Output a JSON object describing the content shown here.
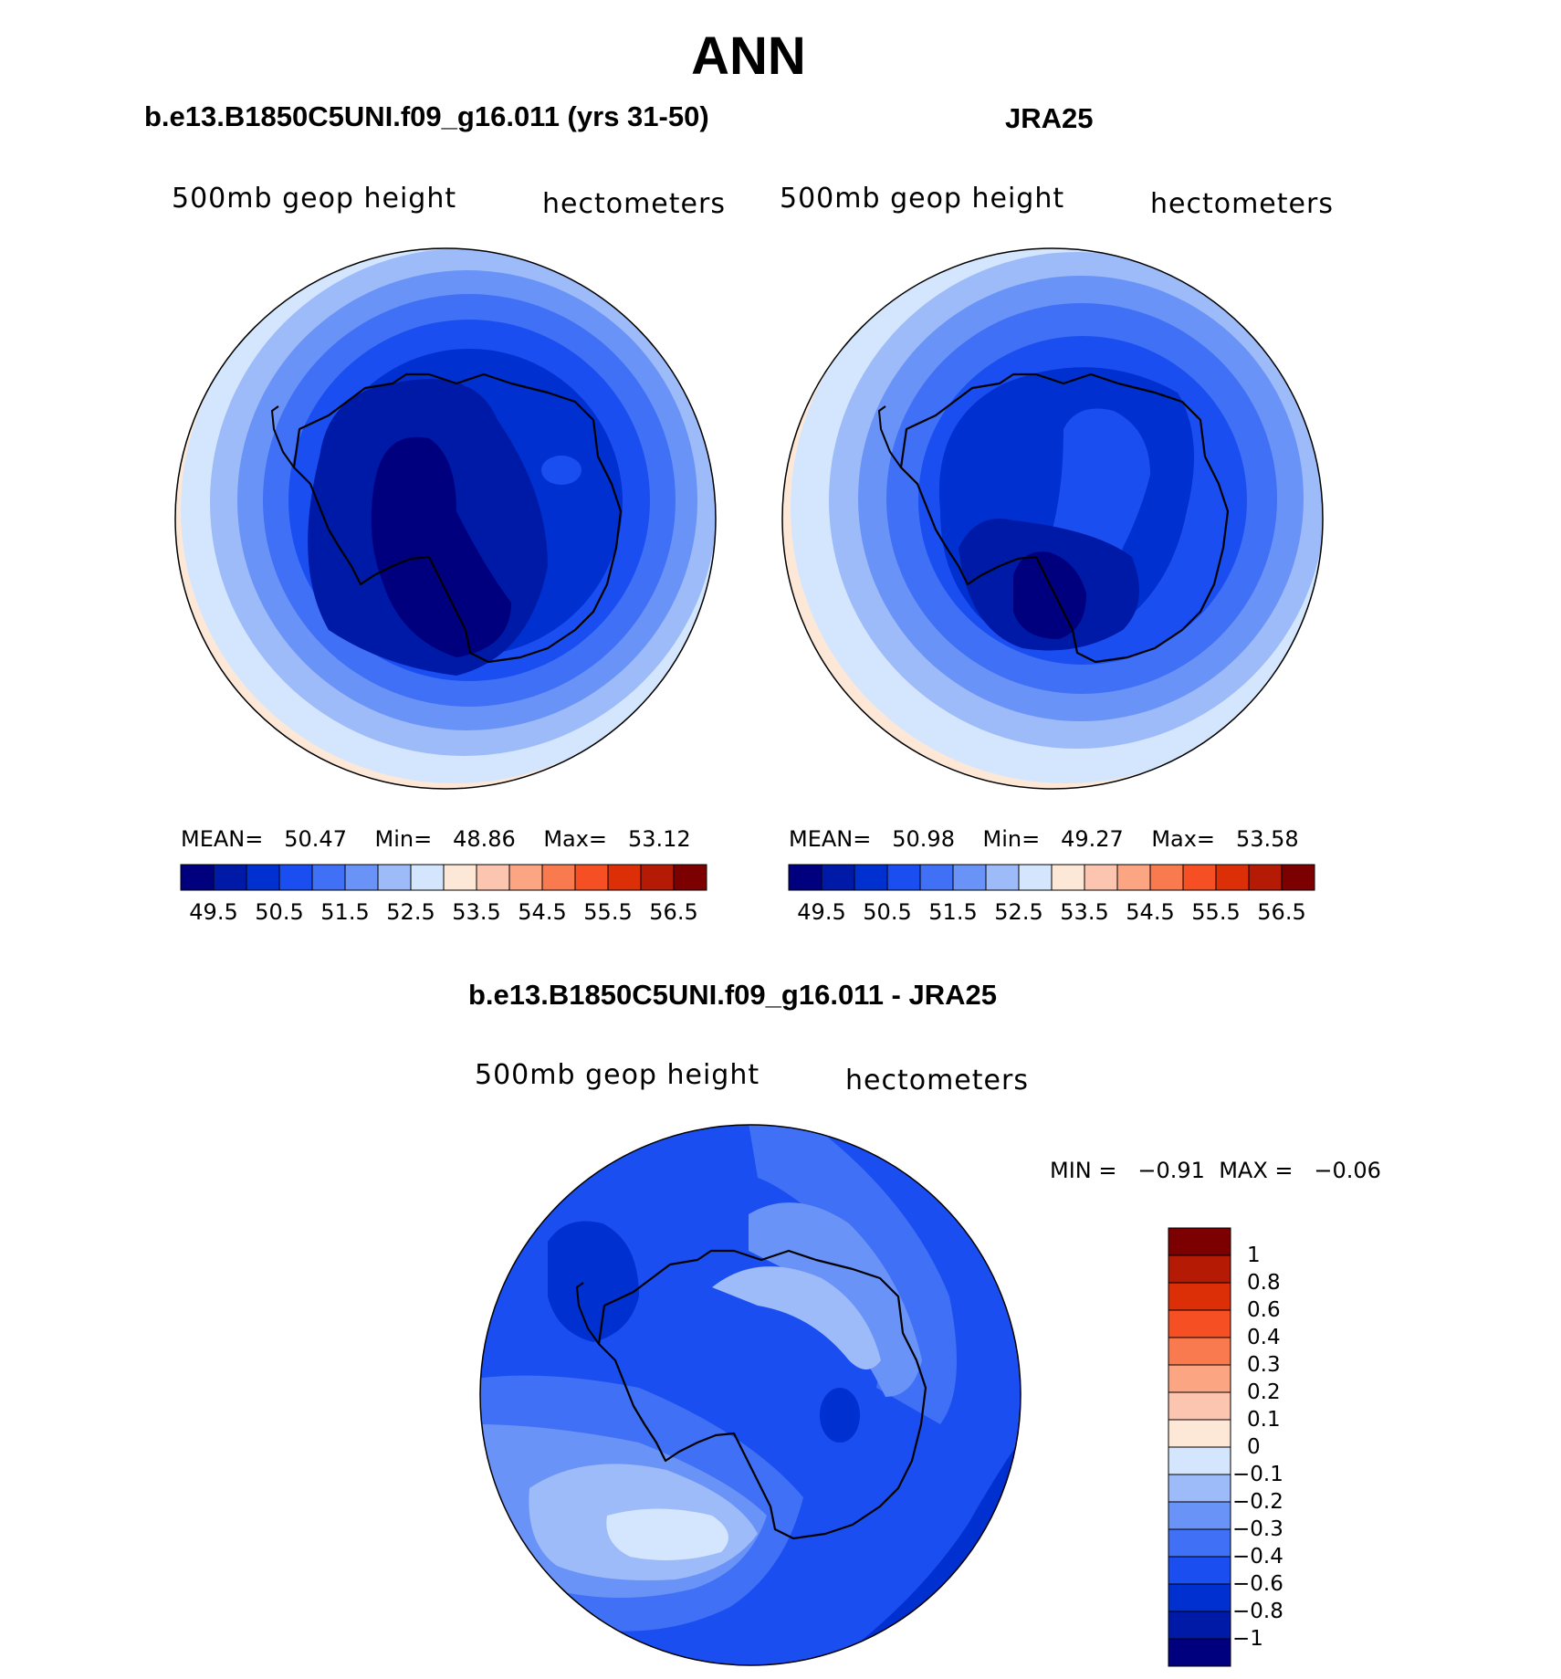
{
  "title": "ANN",
  "panels": [
    {
      "title": "b.e13.B1850C5UNI.f09_g16.011 (yrs 31-50)",
      "variable": "500mb geop height",
      "units": "hectometers",
      "stats": {
        "mean_label": "MEAN=",
        "mean": "50.47",
        "min_label": "Min=",
        "min": "48.86",
        "max_label": "Max=",
        "max": "53.12"
      }
    },
    {
      "title": "JRA25",
      "variable": "500mb geop height",
      "units": "hectometers",
      "stats": {
        "mean_label": "MEAN=",
        "mean": "50.98",
        "min_label": "Min=",
        "min": "49.27",
        "max_label": "Max=",
        "max": "53.58"
      }
    },
    {
      "title": "b.e13.B1850C5UNI.f09_g16.011 - JRA25",
      "variable": "500mb geop height",
      "units": "hectometers",
      "stats": {
        "min_label": "MIN =",
        "min": "−0.91",
        "max_label": "MAX =",
        "max": "−0.06"
      }
    }
  ],
  "colorbar_abs": {
    "colors": [
      "#00007f",
      "#001aa8",
      "#0030d0",
      "#1a4ef0",
      "#4070f5",
      "#6a93f7",
      "#9dbaf9",
      "#d3e6fd",
      "#fde8d8",
      "#fcc5b0",
      "#fba583",
      "#f97a4f",
      "#f54f23",
      "#dc2f08",
      "#b41a04",
      "#7c0000"
    ],
    "labels": [
      "49.5",
      "50.5",
      "51.5",
      "52.5",
      "53.5",
      "54.5",
      "55.5",
      "56.5"
    ]
  },
  "colorbar_diff": {
    "colors_top_down": [
      "#7c0000",
      "#b41a04",
      "#dc2f08",
      "#f54f23",
      "#f97a4f",
      "#fba583",
      "#fcc5b0",
      "#fde8d8",
      "#d3e6fd",
      "#9dbaf9",
      "#6a93f7",
      "#4070f5",
      "#1a4ef0",
      "#0030d0",
      "#001aa8",
      "#00007f"
    ],
    "labels_top_down": [
      "1",
      "0.8",
      "0.6",
      "0.4",
      "0.3",
      "0.2",
      "0.1",
      "0",
      "−0.1",
      "−0.2",
      "−0.3",
      "−0.4",
      "−0.6",
      "−0.8",
      "−1"
    ]
  }
}
